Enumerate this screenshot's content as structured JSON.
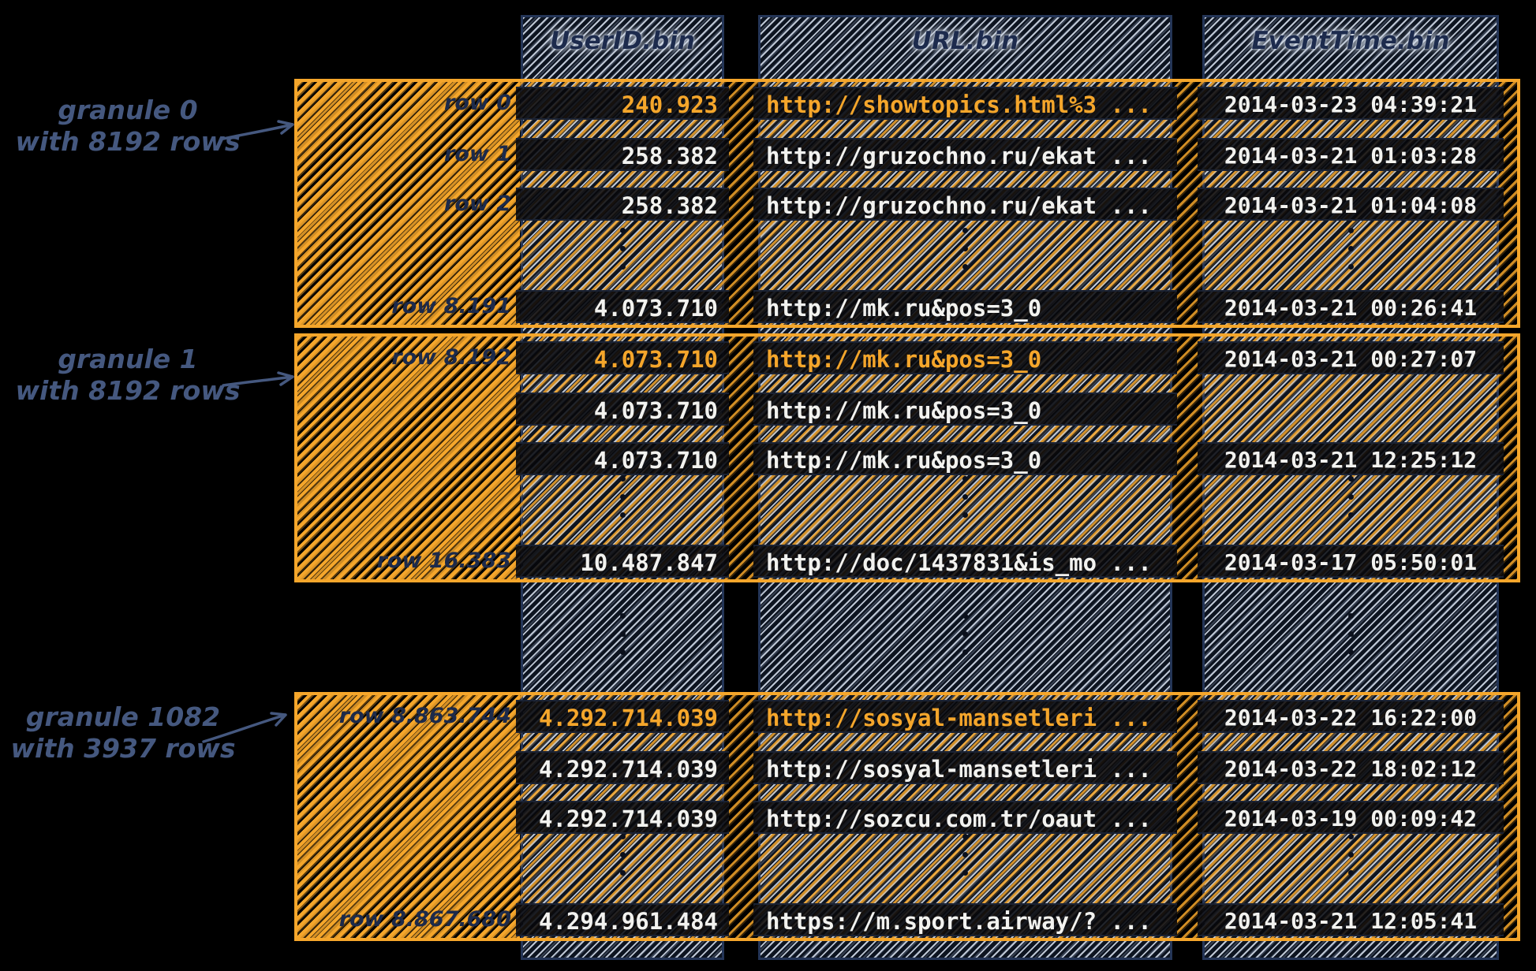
{
  "columns": [
    {
      "header": "UserID.bin"
    },
    {
      "header": "URL.bin"
    },
    {
      "header": "EventTime.bin"
    }
  ],
  "granules": [
    {
      "id": "granule-0",
      "annotation": [
        "granule 0",
        "with 8192 rows"
      ],
      "rows": [
        {
          "label": "row 0",
          "highlight": true,
          "cells": [
            "240.923",
            "http://showtopics.html%3 ...",
            "2014-03-23 04:39:21"
          ]
        },
        {
          "label": "row 1",
          "highlight": false,
          "cells": [
            "258.382",
            "http://gruzochno.ru/ekat ...",
            "2014-03-21 01:03:28"
          ]
        },
        {
          "label": "row 2",
          "highlight": false,
          "cells": [
            "258.382",
            "http://gruzochno.ru/ekat ...",
            "2014-03-21 01:04:08"
          ]
        },
        {
          "label": "row 8.191",
          "highlight": false,
          "cells": [
            "4.073.710",
            "http://mk.ru&pos=3_0",
            "2014-03-21 00:26:41"
          ]
        }
      ]
    },
    {
      "id": "granule-1",
      "annotation": [
        "granule 1",
        "with 8192 rows"
      ],
      "rows": [
        {
          "label": "row 8.192",
          "highlight": true,
          "cells": [
            "4.073.710",
            "http://mk.ru&pos=3_0",
            "2014-03-21 00:27:07"
          ]
        },
        {
          "label": "",
          "highlight": false,
          "cells": [
            "4.073.710",
            "http://mk.ru&pos=3_0",
            ""
          ]
        },
        {
          "label": "",
          "highlight": false,
          "cells": [
            "4.073.710",
            "http://mk.ru&pos=3_0",
            "2014-03-21 12:25:12"
          ]
        },
        {
          "label": "row 16.383",
          "highlight": false,
          "cells": [
            "10.487.847",
            "http://doc/1437831&is_mo ...",
            "2014-03-17 05:50:01"
          ]
        }
      ]
    },
    {
      "id": "granule-1082",
      "annotation": [
        "granule 1082",
        "with 3937 rows"
      ],
      "rows": [
        {
          "label": "row 8.863.744",
          "highlight": true,
          "cells": [
            "4.292.714.039",
            "http://sosyal-mansetleri ...",
            "2014-03-22 16:22:00"
          ]
        },
        {
          "label": "",
          "highlight": false,
          "cells": [
            "4.292.714.039",
            "http://sosyal-mansetleri ...",
            "2014-03-22 18:02:12"
          ]
        },
        {
          "label": "",
          "highlight": false,
          "cells": [
            "4.292.714.039",
            "http://sozcu.com.tr/oaut ...",
            "2014-03-19 00:09:42"
          ]
        },
        {
          "label": "row 8.867.680",
          "highlight": false,
          "cells": [
            "4.294.961.484",
            "https://m.sport.airway/? ...",
            "2014-03-21 12:05:41"
          ]
        }
      ]
    }
  ],
  "colors": {
    "accent_orange": "#F5A62B",
    "hatch_gray": "#C8D1DF",
    "navy_border": "#243557",
    "text_white": "#F2F2EF",
    "annotation_blue": "#45587F"
  }
}
